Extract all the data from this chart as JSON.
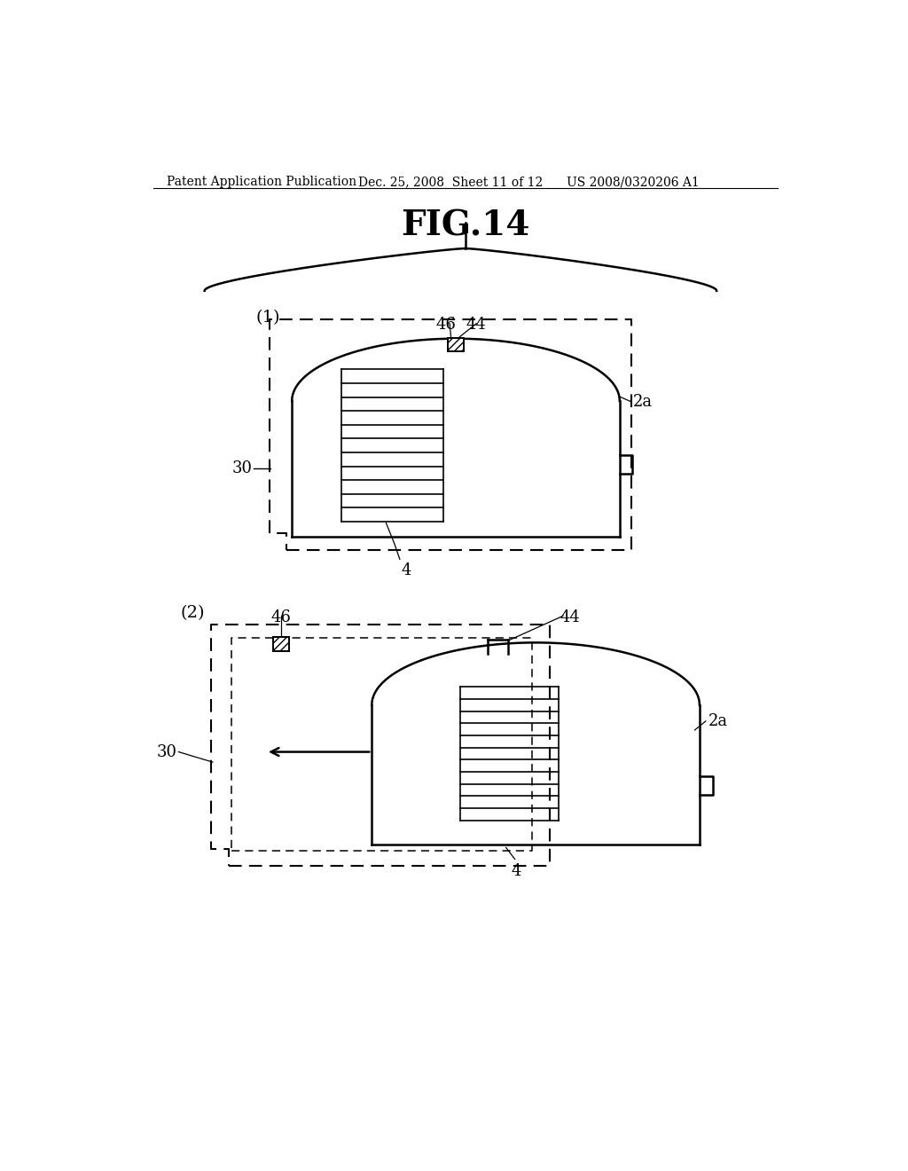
{
  "bg_color": "#ffffff",
  "header_left": "Patent Application Publication",
  "header_mid": "Dec. 25, 2008  Sheet 11 of 12",
  "header_right": "US 2008/0320206 A1",
  "fig_title": "FIG.14",
  "diagram1_label": "(1)",
  "diagram2_label": "(2)",
  "label_30": "30",
  "label_4": "4",
  "label_2a": "2a",
  "label_44": "44",
  "label_46": "46"
}
